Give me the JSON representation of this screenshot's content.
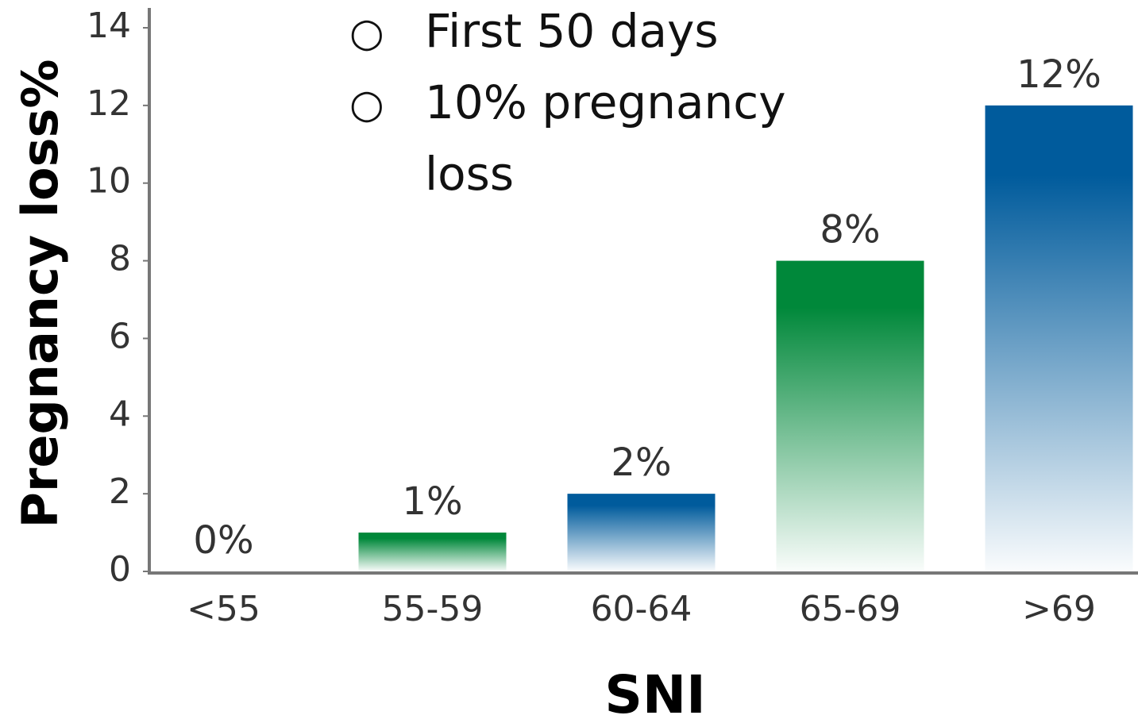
{
  "chart_data": {
    "type": "bar",
    "xlabel": "SNI",
    "ylabel": "Pregnancy loss%",
    "annotations": [
      "First 50 days",
      "10% pregnancy loss"
    ],
    "categories": [
      "<55",
      "55-59",
      "60-64",
      "65-69",
      ">69"
    ],
    "values": [
      0,
      1,
      2,
      8,
      12
    ],
    "value_labels": [
      "0%",
      "1%",
      "2%",
      "8%",
      "12%"
    ],
    "colors": [
      "#00883a",
      "#00883a",
      "#005b9c",
      "#00883a",
      "#005b9c"
    ],
    "ylim": [
      0,
      14
    ],
    "yticks": [
      0,
      2,
      4,
      6,
      8,
      10,
      12,
      14
    ],
    "grid": false
  }
}
